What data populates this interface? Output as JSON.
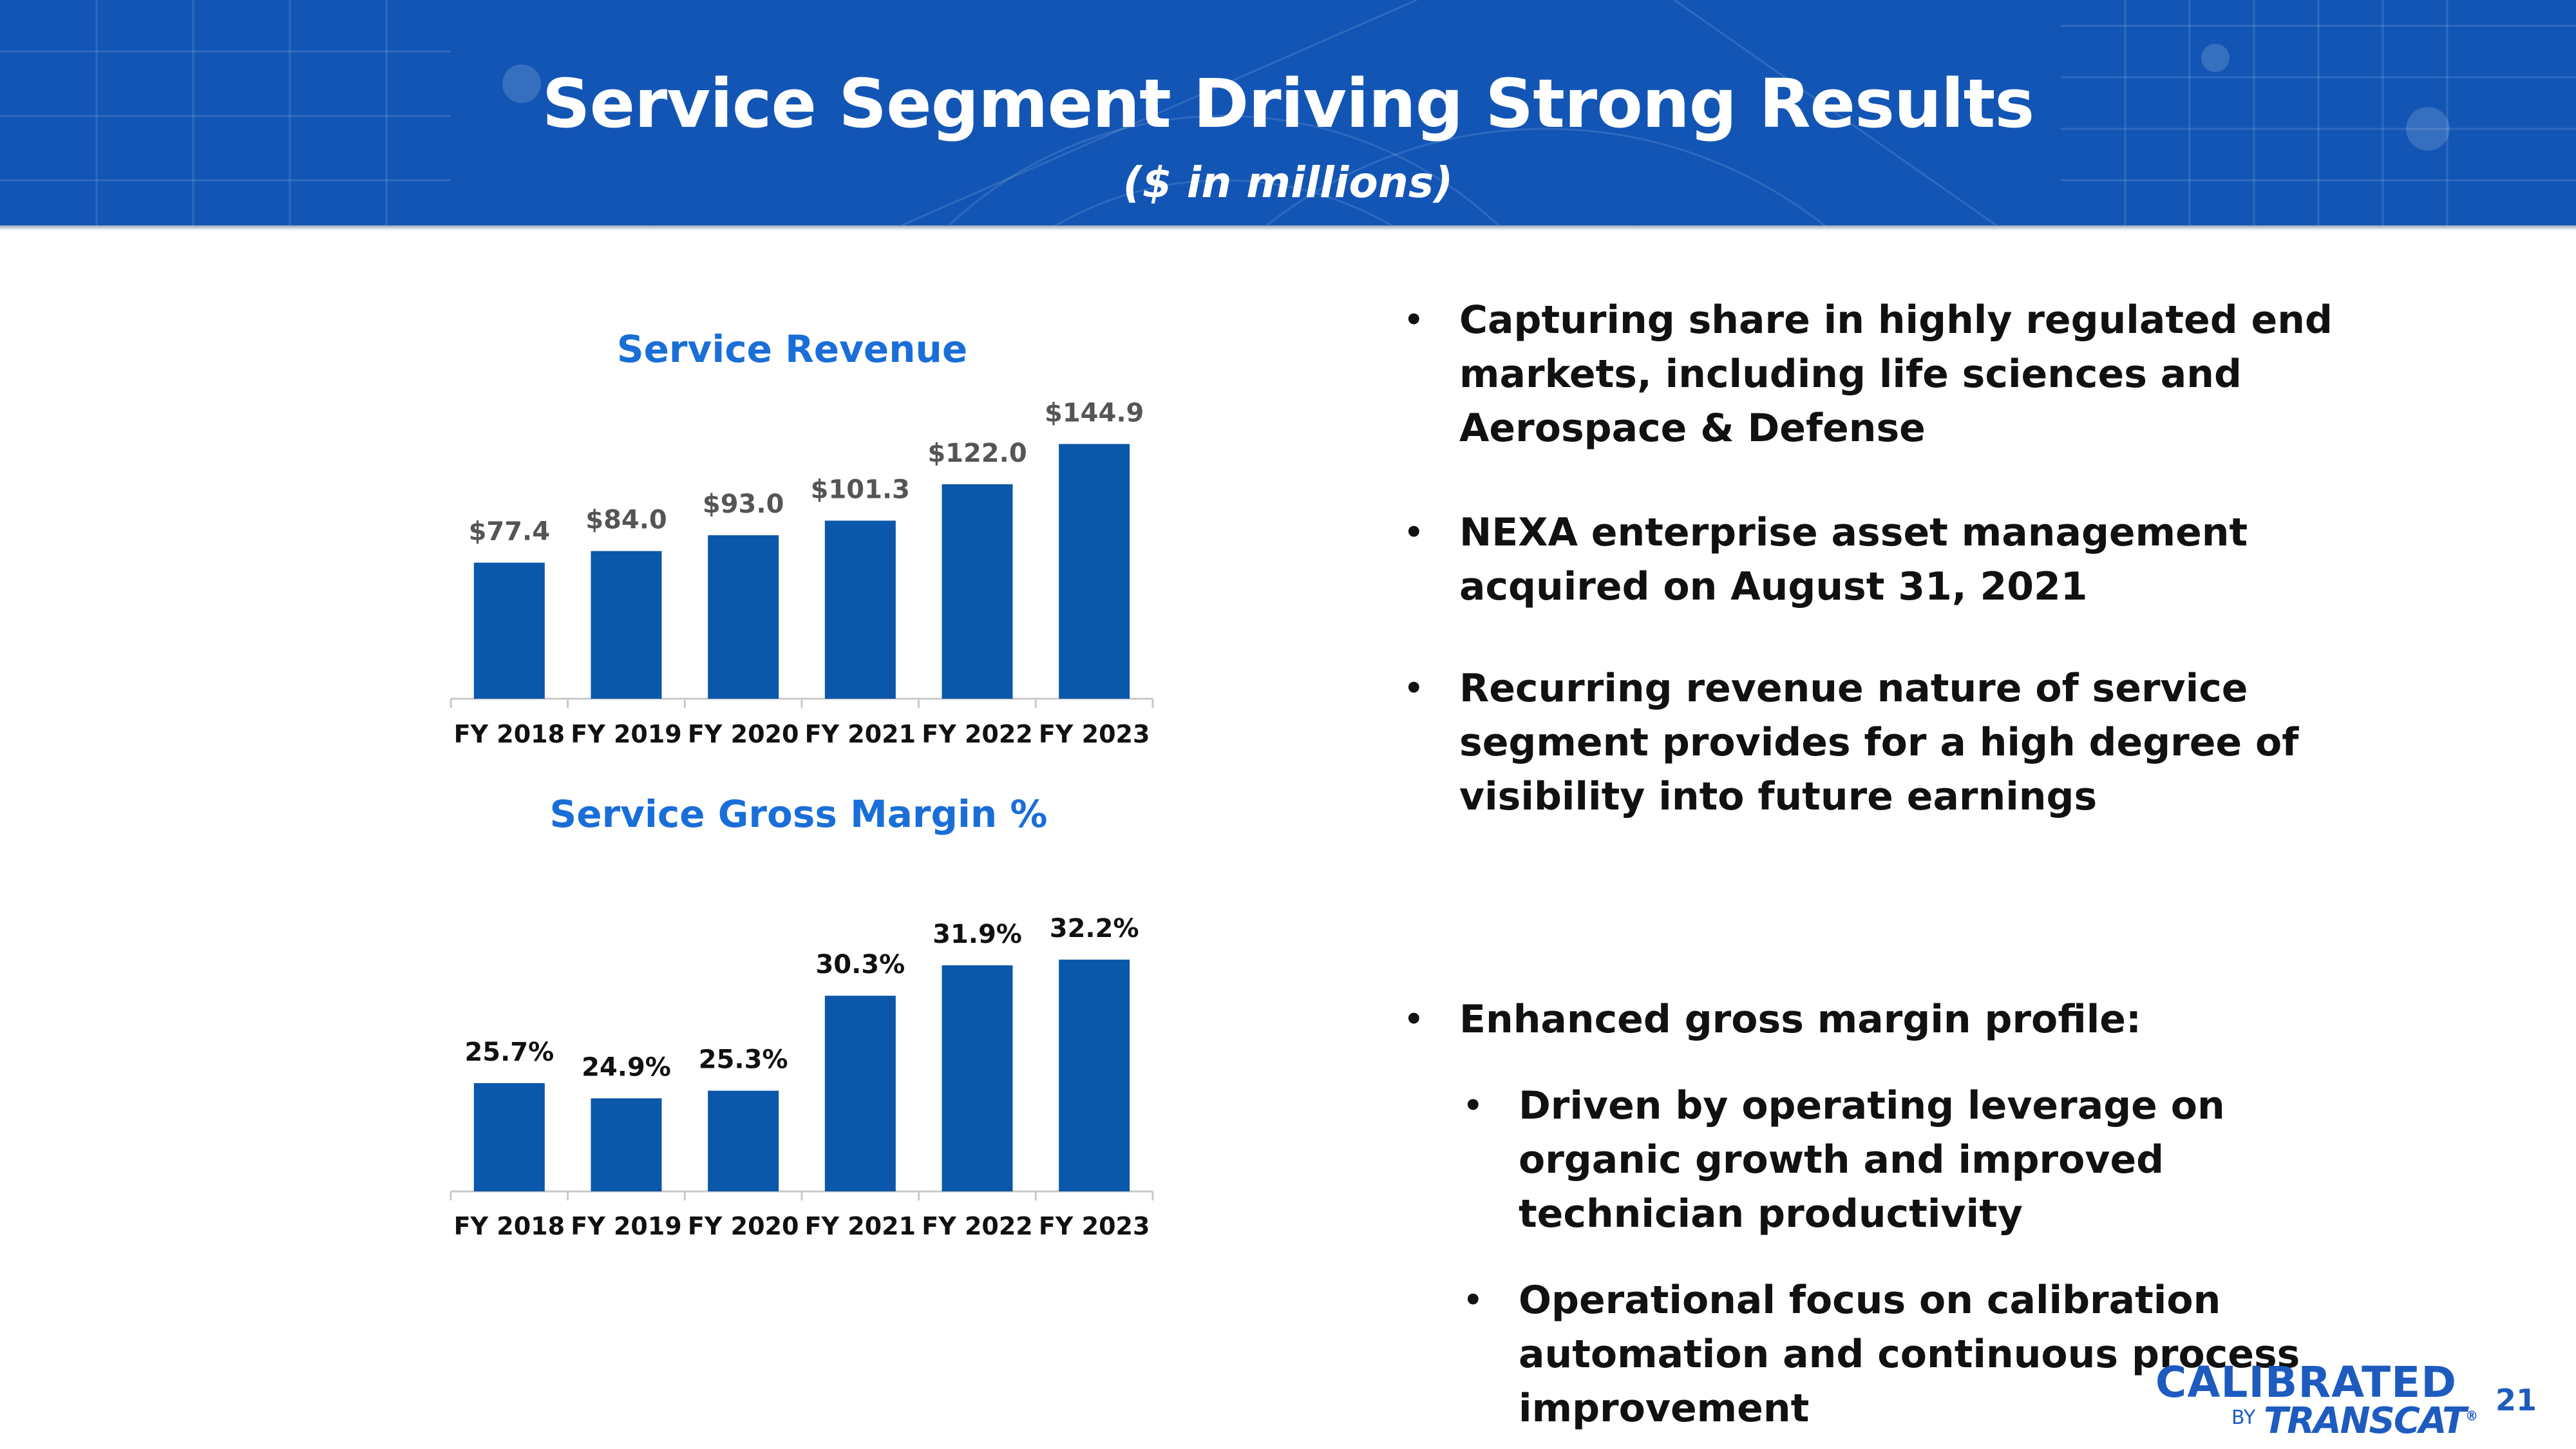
{
  "header": {
    "title": "Service Segment Driving Strong Results",
    "subtitle": "($ in millions)"
  },
  "chart_data": [
    {
      "type": "bar",
      "title": "Service Revenue",
      "categories": [
        "FY 2018",
        "FY 2019",
        "FY 2020",
        "FY 2021",
        "FY 2022",
        "FY 2023"
      ],
      "values": [
        77.4,
        84.0,
        93.0,
        101.3,
        122.0,
        144.9
      ],
      "labels": [
        "$77.4",
        "$84.0",
        "$93.0",
        "$101.3",
        "$122.0",
        "$144.9"
      ],
      "ylim": [
        0,
        150
      ],
      "xlabel": "",
      "ylabel": "",
      "grid": false
    },
    {
      "type": "bar",
      "title": "Service Gross Margin %",
      "categories": [
        "FY 2018",
        "FY 2019",
        "FY 2020",
        "FY 2021",
        "FY 2022",
        "FY 2023"
      ],
      "values": [
        25.7,
        24.9,
        25.3,
        30.3,
        31.9,
        32.2
      ],
      "labels": [
        "25.7%",
        "24.9%",
        "25.3%",
        "30.3%",
        "31.9%",
        "32.2%"
      ],
      "ylim": [
        20,
        33
      ],
      "xlabel": "",
      "ylabel": "",
      "grid": false
    }
  ],
  "bullets": {
    "b1": "Capturing share in highly regulated end markets, including life sciences and Aerospace & Defense",
    "b2": "NEXA enterprise asset management acquired on August 31, 2021",
    "b3": "Recurring revenue nature of service segment provides for a high degree of visibility into future earnings",
    "b4": "Enhanced gross margin profile:",
    "s1": "Driven by operating leverage on organic growth and improved technician productivity",
    "s2": "Operational focus on calibration automation and continuous process improvement"
  },
  "bullet_glyph": "•",
  "logo": {
    "top": "CALIBRATED",
    "by": "BY",
    "brand": "TRANSCAT",
    "mark": "®"
  },
  "page_number": "21",
  "colors": {
    "header_bg": "#1355b5",
    "bar": "#0b57a9",
    "chart_title": "#1a6ed8",
    "logo": "#1e5bbf"
  }
}
